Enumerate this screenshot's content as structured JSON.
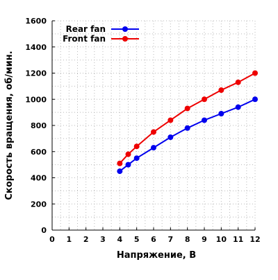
{
  "chart_data": {
    "type": "line",
    "title": "",
    "xlabel": "Напряжение, В",
    "ylabel": "Скорость вращения, об/мин.",
    "xlim": [
      0,
      12
    ],
    "ylim": [
      0,
      1600
    ],
    "x_ticks": [
      0,
      1,
      2,
      3,
      4,
      5,
      6,
      7,
      8,
      9,
      10,
      11,
      12
    ],
    "y_ticks": [
      0,
      200,
      400,
      600,
      800,
      1000,
      1200,
      1400,
      1600
    ],
    "x_minor_step": 0.5,
    "y_minor_step": 100,
    "grid": true,
    "legend_position": "top-left",
    "series": [
      {
        "name": "Rear fan",
        "color": "#0000ee",
        "points": [
          [
            4,
            450
          ],
          [
            4.5,
            500
          ],
          [
            5,
            550
          ],
          [
            6,
            630
          ],
          [
            7,
            710
          ],
          [
            8,
            780
          ],
          [
            9,
            840
          ],
          [
            10,
            890
          ],
          [
            11,
            940
          ],
          [
            12,
            1000
          ]
        ]
      },
      {
        "name": "Front fan",
        "color": "#ee0000",
        "points": [
          [
            4,
            510
          ],
          [
            4.5,
            580
          ],
          [
            5,
            640
          ],
          [
            6,
            750
          ],
          [
            7,
            840
          ],
          [
            8,
            930
          ],
          [
            9,
            1000
          ],
          [
            10,
            1070
          ],
          [
            11,
            1130
          ],
          [
            12,
            1200
          ]
        ]
      }
    ]
  }
}
